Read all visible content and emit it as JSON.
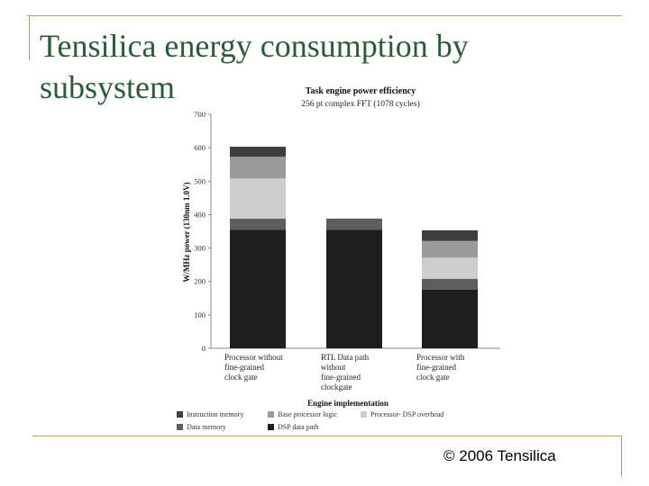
{
  "slide": {
    "title": "Tensilica energy consumption by subsystem",
    "copyright": "© 2006 Tensilica"
  },
  "chart_data": {
    "type": "bar",
    "stacked": true,
    "title": "Task engine power efficiency",
    "subtitle": "256 pt complex FFT (1078 cycles)",
    "xlabel": "Engine implementation",
    "ylabel": "W/MHz power (130nm 1.0V)",
    "ylim": [
      0,
      700
    ],
    "yticks": [
      0,
      100,
      200,
      300,
      400,
      500,
      600,
      700
    ],
    "categories": [
      [
        "Processor without",
        "fine-grained",
        "clock gate"
      ],
      [
        "RTL Data path",
        "without",
        "fine-grained",
        "clockgate"
      ],
      [
        "Processor with",
        "fine-grained",
        "clock gate"
      ]
    ],
    "series": [
      {
        "name": "DSP data path",
        "color": "#1e1e1e",
        "values": [
          355,
          355,
          175
        ]
      },
      {
        "name": "Data memory",
        "color": "#5e5e5e",
        "values": [
          33,
          33,
          33
        ]
      },
      {
        "name": "Processor- DSP overhead",
        "color": "#cecece",
        "values": [
          120,
          0,
          63
        ]
      },
      {
        "name": "Base processor logic",
        "color": "#9a9a9a",
        "values": [
          65,
          0,
          50
        ]
      },
      {
        "name": "Instruction memory",
        "color": "#3e3e3e",
        "values": [
          30,
          0,
          32
        ]
      }
    ],
    "legend": {
      "placement": "bottom",
      "rows": [
        [
          "Instruction memory",
          "Base processor logic",
          "Processor- DSP overhead"
        ],
        [
          "Data memory",
          "DSP data path"
        ]
      ]
    },
    "grid": false
  }
}
